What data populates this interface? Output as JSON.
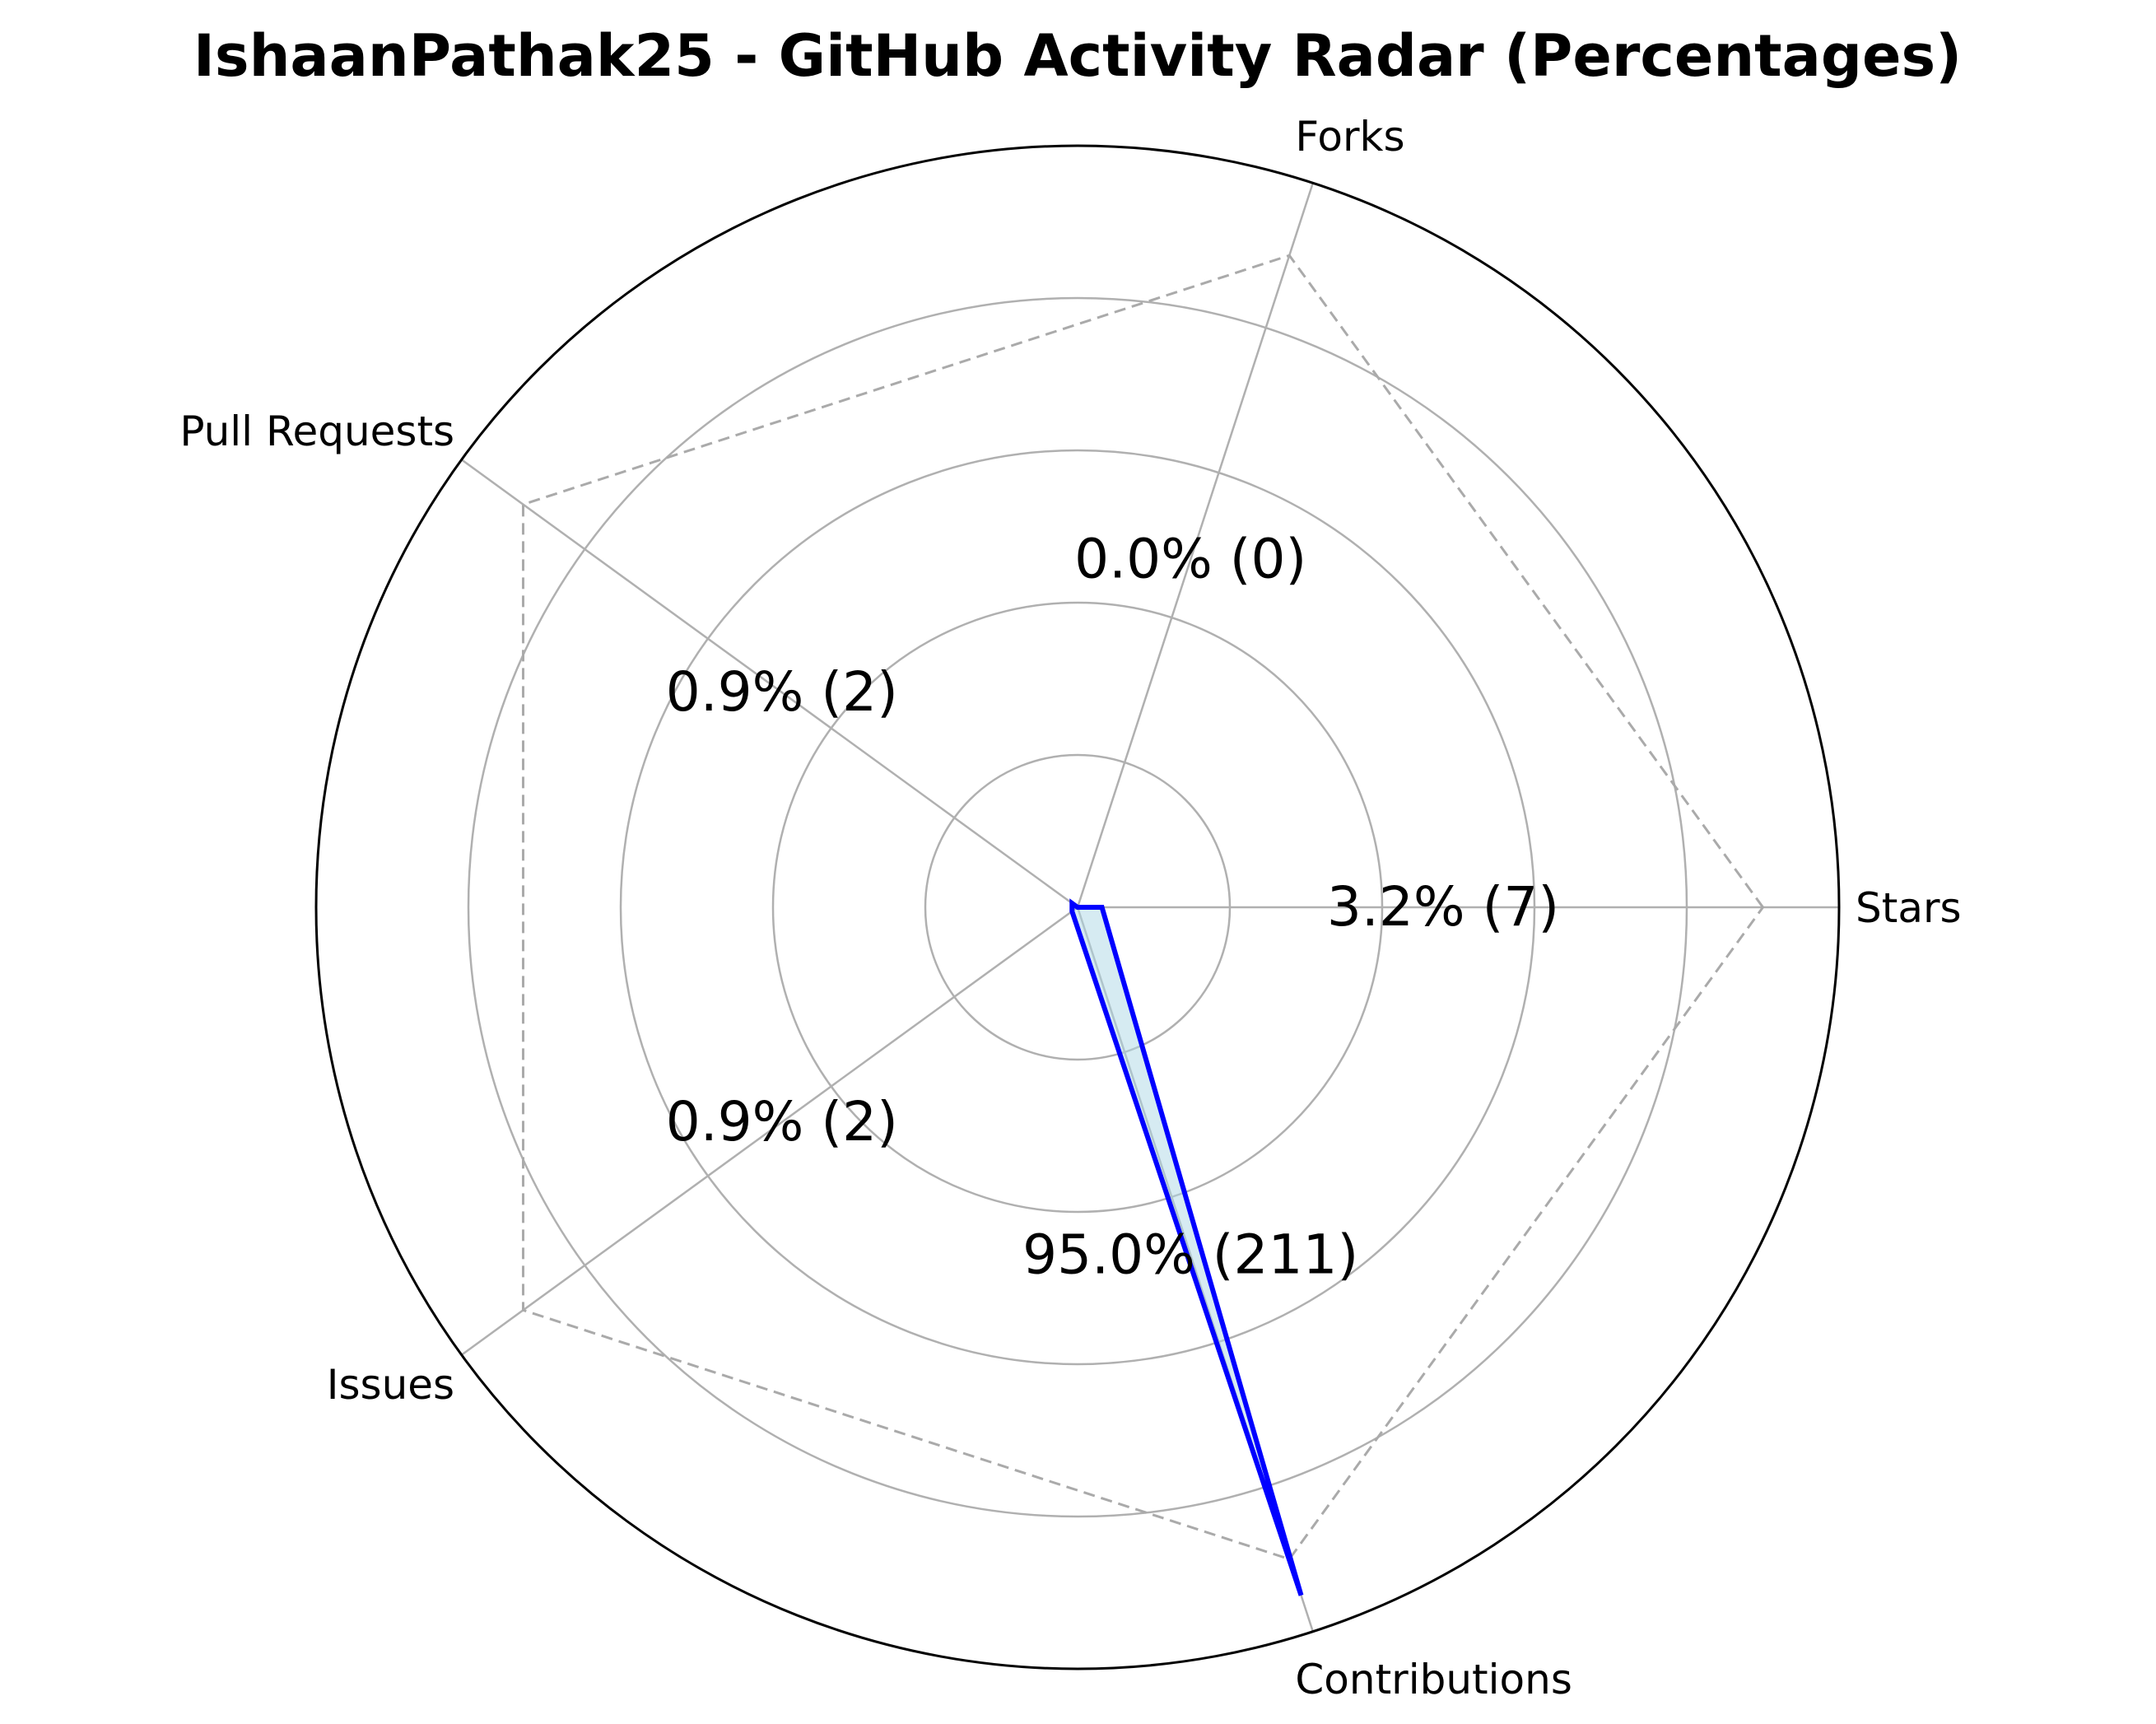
{
  "chart_data": {
    "type": "radar",
    "title": "IshaanPathak25 - GitHub Activity Radar (Percentages)",
    "categories": [
      "Stars",
      "Forks",
      "Pull Requests",
      "Issues",
      "Contributions"
    ],
    "values": [
      3.2,
      0.0,
      0.9,
      0.9,
      95.0
    ],
    "counts": [
      7,
      0,
      2,
      2,
      211
    ],
    "value_labels": [
      "3.2% (7)",
      "0.0% (0)",
      "0.9% (2)",
      "0.9% (2)",
      "95.0% (211)"
    ],
    "rlim": [
      0,
      100
    ],
    "grid": true,
    "colors": {
      "line": "#0000ff",
      "fill": "#add8e6",
      "grid": "#b0b0b0",
      "outer_circle": "#000000",
      "reference": "#aaaaaa"
    }
  }
}
